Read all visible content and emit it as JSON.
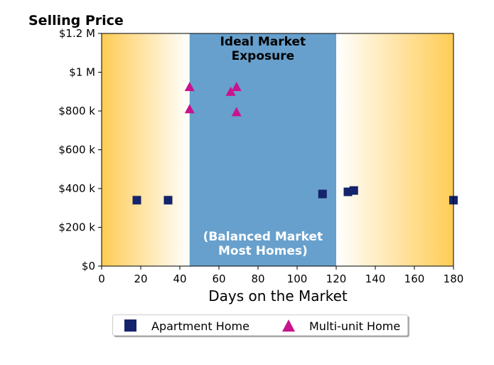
{
  "chart_data": {
    "type": "scatter",
    "ylabel": "Selling Price",
    "xlabel": "Days on the Market",
    "xlim": [
      0,
      180
    ],
    "ylim": [
      0,
      1200000
    ],
    "xticks": [
      0,
      20,
      40,
      60,
      80,
      100,
      120,
      140,
      160,
      180
    ],
    "xtick_labels": [
      "0",
      "20",
      "40",
      "60",
      "80",
      "100",
      "120",
      "140",
      "160",
      "180"
    ],
    "yticks": [
      0,
      200000,
      400000,
      600000,
      800000,
      1000000,
      1200000
    ],
    "ytick_labels": [
      "$0",
      "$200 k",
      "$400 k",
      "$600 k",
      "$800 k",
      "$1 M",
      "$1.2 M"
    ],
    "grid": false,
    "legend_placement": "bottom-center",
    "regions": [
      {
        "x_start": 45,
        "x_end": 120,
        "color": "#67a0cc",
        "label_top": "Ideal Market\nExposure",
        "label_bottom": "(Balanced Market\nMost Homes)"
      }
    ],
    "background_gradient": {
      "edge_color": "#ffcc55",
      "center_color": "#ffffff"
    },
    "series": [
      {
        "name": "Apartment Home",
        "marker": "square",
        "color": "#14236b",
        "points": [
          [
            18,
            340000
          ],
          [
            34,
            340000
          ],
          [
            113,
            372000
          ],
          [
            126,
            383000
          ],
          [
            129,
            390000
          ],
          [
            180,
            340000
          ]
        ]
      },
      {
        "name": "Multi-unit Home",
        "marker": "triangle",
        "color": "#c8138c",
        "points": [
          [
            45,
            925000
          ],
          [
            45,
            810000
          ],
          [
            66,
            900000
          ],
          [
            69,
            925000
          ],
          [
            69,
            795000
          ]
        ]
      }
    ]
  }
}
